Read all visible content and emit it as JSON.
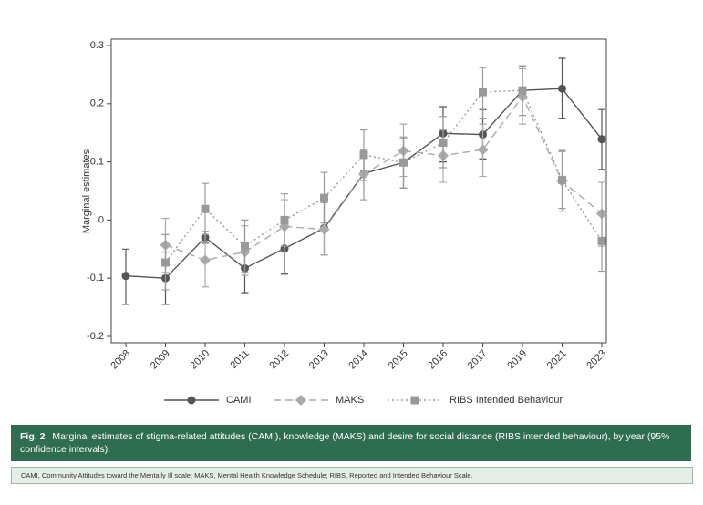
{
  "chart_data": {
    "type": "line",
    "y_label": "Marginal estimates",
    "categories": [
      "2008",
      "2009",
      "2010",
      "2011",
      "2012",
      "2013",
      "2014",
      "2015",
      "2016",
      "2017",
      "2019",
      "2021",
      "2023"
    ],
    "ylim": [
      -0.2,
      0.3
    ],
    "yticks": [
      -0.2,
      -0.1,
      0,
      0.1,
      0.2,
      0.3
    ],
    "series": [
      {
        "name": "CAMI",
        "color": "#555555",
        "dash": "solid",
        "marker": "circle",
        "values": [
          -0.096,
          -0.1,
          -0.03,
          -0.083,
          -0.049,
          -0.014,
          0.08,
          0.099,
          0.149,
          0.147,
          0.223,
          0.226,
          0.139
        ],
        "lower": [
          -0.145,
          -0.145,
          -0.04,
          -0.125,
          -0.093,
          -0.06,
          0.035,
          0.055,
          0.1,
          0.105,
          0.18,
          0.175,
          0.087
        ],
        "upper": [
          -0.05,
          -0.055,
          -0.02,
          -0.04,
          -0.005,
          0.03,
          0.12,
          0.14,
          0.195,
          0.19,
          0.265,
          0.278,
          0.19
        ]
      },
      {
        "name": "MAKS",
        "color": "#aaaaaa",
        "dash": "dashed",
        "marker": "diamond",
        "values": [
          null,
          -0.043,
          -0.069,
          -0.055,
          -0.011,
          -0.016,
          0.079,
          0.119,
          0.111,
          0.121,
          0.212,
          0.067,
          0.011
        ],
        "lower": [
          null,
          -0.09,
          -0.115,
          -0.095,
          -0.055,
          -0.06,
          0.035,
          0.075,
          0.065,
          0.075,
          0.165,
          0.015,
          -0.045
        ],
        "upper": [
          null,
          0.003,
          -0.025,
          -0.01,
          0.035,
          0.03,
          0.12,
          0.165,
          0.155,
          0.165,
          0.26,
          0.12,
          0.065
        ]
      },
      {
        "name": "RIBS Intended Behaviour",
        "color": "#999999",
        "dash": "dotted",
        "marker": "square",
        "values": [
          null,
          -0.073,
          0.019,
          -0.045,
          0,
          0.038,
          0.112,
          0.099,
          0.133,
          0.22,
          0.223,
          0.069,
          -0.036
        ],
        "lower": [
          null,
          -0.12,
          -0.025,
          -0.09,
          -0.045,
          -0.005,
          0.068,
          0.055,
          0.09,
          0.175,
          0.18,
          0.02,
          -0.088
        ],
        "upper": [
          null,
          -0.025,
          0.063,
          0,
          0.045,
          0.082,
          0.155,
          0.143,
          0.178,
          0.262,
          0.265,
          0.118,
          0.015
        ]
      }
    ]
  },
  "caption": {
    "label": "Fig. 2",
    "text": "Marginal estimates of stigma-related attitudes (CAMI), knowledge (MAKS) and desire for social distance (RIBS intended behaviour), by year (95% confidence intervals)."
  },
  "note": "CAMI, Community Attitudes toward the Mentally Ill scale; MAKS, Mental Health Knowledge Schedule; RIBS, Reported and Intended Behaviour Scale."
}
